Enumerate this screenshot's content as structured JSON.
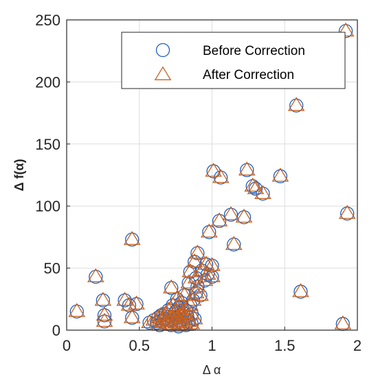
{
  "colors": {
    "before": "#1f5fbf",
    "after": "#c8601e",
    "axis": "#262626",
    "grid": "#dddddd"
  },
  "chart_data": {
    "type": "scatter",
    "xlabel": "Δ α",
    "ylabel": "Δ f(α)",
    "xlim": [
      0,
      2
    ],
    "ylim": [
      0,
      250
    ],
    "xticks": [
      0,
      0.5,
      1,
      1.5,
      2
    ],
    "xtick_labels": [
      "0",
      "0.5",
      "1",
      "1.5",
      "2"
    ],
    "yticks": [
      0,
      50,
      100,
      150,
      200,
      250
    ],
    "ytick_labels": [
      "0",
      "50",
      "100",
      "150",
      "200",
      "250"
    ],
    "grid": true,
    "legend_position": "top-right",
    "series": [
      {
        "name": "Before Correction",
        "marker": "circle",
        "points": [
          [
            0.07,
            15
          ],
          [
            0.2,
            43
          ],
          [
            0.25,
            24
          ],
          [
            0.26,
            12
          ],
          [
            0.26,
            7
          ],
          [
            0.4,
            24
          ],
          [
            0.43,
            20
          ],
          [
            0.45,
            10
          ],
          [
            0.45,
            73
          ],
          [
            0.48,
            21
          ],
          [
            0.57,
            6
          ],
          [
            0.6,
            8
          ],
          [
            0.62,
            6
          ],
          [
            0.63,
            10
          ],
          [
            0.64,
            4
          ],
          [
            0.65,
            12
          ],
          [
            0.66,
            7
          ],
          [
            0.67,
            9
          ],
          [
            0.68,
            13
          ],
          [
            0.69,
            5
          ],
          [
            0.7,
            8
          ],
          [
            0.7,
            16
          ],
          [
            0.71,
            11
          ],
          [
            0.72,
            34
          ],
          [
            0.72,
            4
          ],
          [
            0.73,
            9
          ],
          [
            0.73,
            20
          ],
          [
            0.74,
            13
          ],
          [
            0.75,
            6
          ],
          [
            0.75,
            15
          ],
          [
            0.76,
            10
          ],
          [
            0.76,
            25
          ],
          [
            0.77,
            18
          ],
          [
            0.77,
            3
          ],
          [
            0.78,
            12
          ],
          [
            0.78,
            7
          ],
          [
            0.79,
            22
          ],
          [
            0.8,
            14
          ],
          [
            0.8,
            5
          ],
          [
            0.81,
            9
          ],
          [
            0.81,
            28
          ],
          [
            0.82,
            16
          ],
          [
            0.82,
            4
          ],
          [
            0.83,
            11
          ],
          [
            0.84,
            38
          ],
          [
            0.84,
            7
          ],
          [
            0.85,
            20
          ],
          [
            0.85,
            47
          ],
          [
            0.86,
            13
          ],
          [
            0.86,
            5
          ],
          [
            0.87,
            24
          ],
          [
            0.88,
            55
          ],
          [
            0.88,
            9
          ],
          [
            0.89,
            30
          ],
          [
            0.89,
            42
          ],
          [
            0.9,
            62
          ],
          [
            0.9,
            35
          ],
          [
            0.92,
            28
          ],
          [
            0.93,
            48
          ],
          [
            0.95,
            40
          ],
          [
            0.96,
            53
          ],
          [
            0.97,
            45
          ],
          [
            0.98,
            79
          ],
          [
            1.0,
            43
          ],
          [
            1.0,
            52
          ],
          [
            1.01,
            128
          ],
          [
            1.05,
            88
          ],
          [
            1.06,
            123
          ],
          [
            1.13,
            93
          ],
          [
            1.15,
            69
          ],
          [
            1.22,
            91
          ],
          [
            1.24,
            129
          ],
          [
            1.28,
            116
          ],
          [
            1.3,
            114
          ],
          [
            1.35,
            110
          ],
          [
            1.47,
            124
          ],
          [
            1.58,
            181
          ],
          [
            1.61,
            31
          ],
          [
            1.9,
            5
          ],
          [
            1.92,
            241
          ],
          [
            1.93,
            94
          ]
        ]
      },
      {
        "name": "After Correction",
        "marker": "triangle",
        "points": [
          [
            0.07,
            15
          ],
          [
            0.2,
            43
          ],
          [
            0.25,
            24
          ],
          [
            0.26,
            12
          ],
          [
            0.26,
            7
          ],
          [
            0.4,
            24
          ],
          [
            0.43,
            20
          ],
          [
            0.45,
            10
          ],
          [
            0.45,
            73
          ],
          [
            0.48,
            21
          ],
          [
            0.57,
            6
          ],
          [
            0.6,
            8
          ],
          [
            0.62,
            6
          ],
          [
            0.63,
            10
          ],
          [
            0.64,
            4
          ],
          [
            0.65,
            12
          ],
          [
            0.66,
            7
          ],
          [
            0.67,
            9
          ],
          [
            0.68,
            13
          ],
          [
            0.69,
            5
          ],
          [
            0.7,
            8
          ],
          [
            0.7,
            16
          ],
          [
            0.71,
            11
          ],
          [
            0.72,
            34
          ],
          [
            0.72,
            4
          ],
          [
            0.73,
            9
          ],
          [
            0.73,
            20
          ],
          [
            0.74,
            13
          ],
          [
            0.75,
            6
          ],
          [
            0.75,
            15
          ],
          [
            0.76,
            10
          ],
          [
            0.76,
            25
          ],
          [
            0.77,
            18
          ],
          [
            0.77,
            3
          ],
          [
            0.78,
            12
          ],
          [
            0.78,
            7
          ],
          [
            0.79,
            22
          ],
          [
            0.8,
            14
          ],
          [
            0.8,
            5
          ],
          [
            0.81,
            9
          ],
          [
            0.81,
            28
          ],
          [
            0.82,
            16
          ],
          [
            0.82,
            4
          ],
          [
            0.83,
            11
          ],
          [
            0.84,
            38
          ],
          [
            0.84,
            7
          ],
          [
            0.85,
            20
          ],
          [
            0.85,
            47
          ],
          [
            0.86,
            13
          ],
          [
            0.86,
            5
          ],
          [
            0.87,
            24
          ],
          [
            0.88,
            55
          ],
          [
            0.88,
            9
          ],
          [
            0.89,
            30
          ],
          [
            0.89,
            42
          ],
          [
            0.9,
            62
          ],
          [
            0.9,
            35
          ],
          [
            0.92,
            28
          ],
          [
            0.93,
            48
          ],
          [
            0.95,
            40
          ],
          [
            0.96,
            53
          ],
          [
            0.97,
            45
          ],
          [
            0.98,
            79
          ],
          [
            1.0,
            43
          ],
          [
            1.0,
            52
          ],
          [
            1.01,
            128
          ],
          [
            1.05,
            88
          ],
          [
            1.06,
            123
          ],
          [
            1.13,
            93
          ],
          [
            1.15,
            69
          ],
          [
            1.22,
            91
          ],
          [
            1.24,
            129
          ],
          [
            1.28,
            116
          ],
          [
            1.3,
            114
          ],
          [
            1.35,
            110
          ],
          [
            1.47,
            124
          ],
          [
            1.58,
            181
          ],
          [
            1.61,
            31
          ],
          [
            1.9,
            5
          ],
          [
            1.92,
            241
          ],
          [
            1.93,
            94
          ]
        ]
      }
    ]
  }
}
